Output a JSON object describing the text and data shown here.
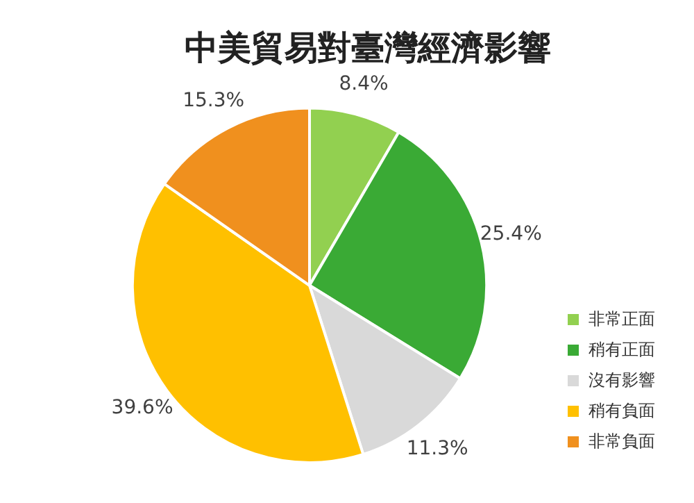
{
  "chart_data": {
    "type": "pie",
    "title": "中美貿易對臺灣經濟影響",
    "categories": [
      "非常正面",
      "稍有正面",
      "沒有影響",
      "稍有負面",
      "非常負面"
    ],
    "values": [
      8.4,
      25.4,
      11.3,
      39.6,
      15.3
    ],
    "colors": [
      "#92d050",
      "#3aaa35",
      "#d9d9d9",
      "#ffc000",
      "#f0901e"
    ],
    "value_labels": [
      "8.4%",
      "25.4%",
      "11.3%",
      "39.6%",
      "15.3%"
    ],
    "legend": "right"
  }
}
